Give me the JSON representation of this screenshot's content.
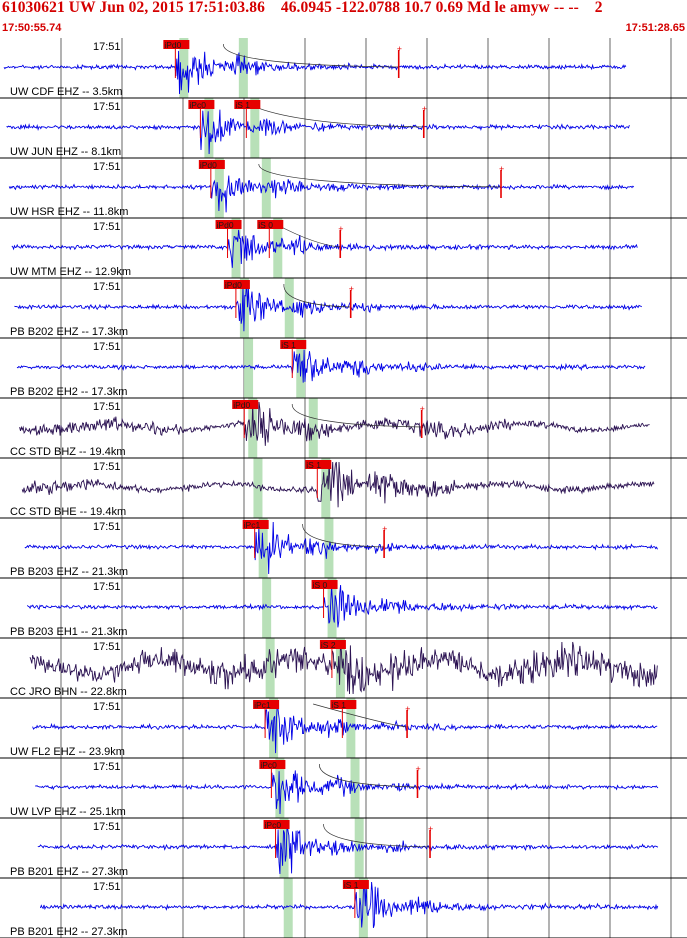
{
  "header": {
    "title": "61030621 UW Jun 02, 2015 17:51:03.86    46.0945 -122.0788 10.7 0.69 Md le amyw -- --    2",
    "start_time": "17:50:55.74",
    "end_time": "17:51:28.65"
  },
  "colors": {
    "header": "#d40000",
    "trace_blue": "#0000e6",
    "trace_dark": "#2b1252",
    "pick_box": "#e60000",
    "pick_text": "#1a1a1a",
    "window_band": "#b8e0b8",
    "divider": "#000000",
    "grid": "#000000"
  },
  "chart_data": {
    "type": "seismogram",
    "time_range": [
      "17:50:55.74",
      "17:51:28.65"
    ],
    "time_tick_label": "17:51",
    "vertical_grid": true,
    "traces": [
      {
        "label": "UW CDF EHZ -- 3.5km",
        "style": "blue",
        "picks": [
          {
            "label": "iPd0",
            "t": 8.4
          }
        ],
        "coda_end_t": 19.1,
        "s_t": null
      },
      {
        "label": "UW JUN EHZ -- 8.1km",
        "style": "blue",
        "picks": [
          {
            "label": "iPc0",
            "t": 9.6
          },
          {
            "label": "iS 1",
            "t": 11.8
          }
        ],
        "coda_end_t": 20.3
      },
      {
        "label": "UW HSR EHZ -- 11.8km",
        "style": "blue",
        "picks": [
          {
            "label": "iPd0",
            "t": 10.1
          }
        ],
        "coda_end_t": 24.0
      },
      {
        "label": "UW MTM EHZ -- 12.9km",
        "style": "blue",
        "picks": [
          {
            "label": "iPd0",
            "t": 10.9
          },
          {
            "label": "iS 0",
            "t": 12.9
          }
        ],
        "coda_end_t": 16.3
      },
      {
        "label": "PB B202 EHZ -- 17.3km",
        "style": "blue",
        "picks": [
          {
            "label": "iPd0",
            "t": 11.3
          }
        ],
        "coda_end_t": 16.8
      },
      {
        "label": "PB B202 EH2 -- 17.3km",
        "style": "blue",
        "picks": [
          {
            "label": "iS 1",
            "t": 14.0
          }
        ],
        "coda_end_t": null
      },
      {
        "label": "CC STD BHZ -- 19.4km",
        "style": "dark",
        "picks": [
          {
            "label": "iPd0",
            "t": 11.7
          }
        ],
        "coda_end_t": 20.2
      },
      {
        "label": "CC STD BHE -- 19.4km",
        "style": "dark",
        "picks": [
          {
            "label": "iS 1",
            "t": 15.2
          }
        ],
        "coda_end_t": null
      },
      {
        "label": "PB B203 EHZ -- 21.3km",
        "style": "blue",
        "picks": [
          {
            "label": "iPc1",
            "t": 12.2
          }
        ],
        "coda_end_t": 18.4
      },
      {
        "label": "PB B203 EH1 -- 21.3km",
        "style": "blue",
        "picks": [
          {
            "label": "iS 0",
            "t": 15.5
          }
        ],
        "coda_end_t": null
      },
      {
        "label": "CC JRO BHN -- 22.8km",
        "style": "dark",
        "picks": [
          {
            "label": "iS 2",
            "t": 15.9
          }
        ],
        "coda_end_t": null
      },
      {
        "label": "UW FL2 EHZ -- 23.9km",
        "style": "blue",
        "picks": [
          {
            "label": "iPc1",
            "t": 12.7
          },
          {
            "label": "iS 1",
            "t": 16.4
          }
        ],
        "coda_end_t": 19.5
      },
      {
        "label": "UW LVP EHZ -- 25.1km",
        "style": "blue",
        "picks": [
          {
            "label": "iPc0",
            "t": 13.0
          }
        ],
        "coda_end_t": 20.0
      },
      {
        "label": "PB B201 EHZ -- 27.3km",
        "style": "blue",
        "picks": [
          {
            "label": "iPc0",
            "t": 13.2
          }
        ],
        "coda_end_t": 20.6
      },
      {
        "label": "PB B201 EH2 -- 27.3km",
        "style": "blue",
        "picks": [
          {
            "label": "iS 1",
            "t": 17.0
          }
        ],
        "coda_end_t": null
      }
    ]
  }
}
